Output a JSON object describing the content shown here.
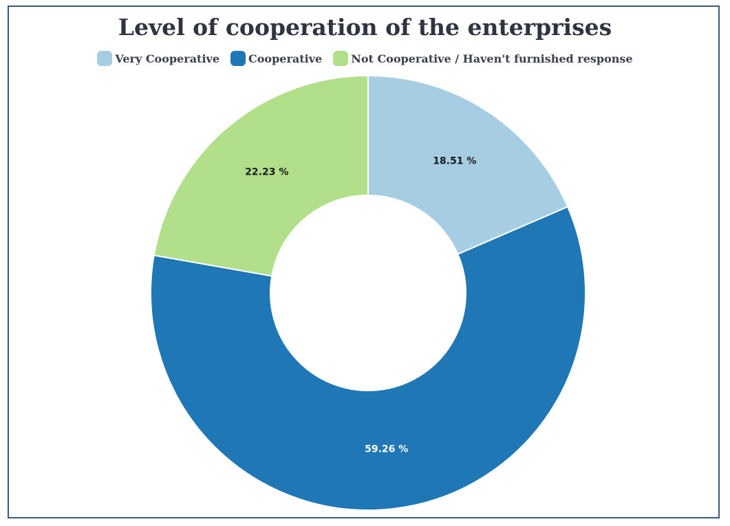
{
  "chart_data": {
    "type": "pie",
    "title": "Level of cooperation of the enterprises",
    "categories": [
      "Very Cooperative",
      "Cooperative",
      "Not Cooperative / Haven't furnished response"
    ],
    "values": [
      18.51,
      59.26,
      22.23
    ],
    "labels": [
      "18.51 %",
      "59.26 %",
      "22.23 %"
    ],
    "colors": [
      "#a6cde2",
      "#2077b5",
      "#b1df8a"
    ],
    "label_colors": [
      "#1a1a1a",
      "#ffffff",
      "#1a1a1a"
    ],
    "donut": true,
    "legend_position": "top"
  }
}
